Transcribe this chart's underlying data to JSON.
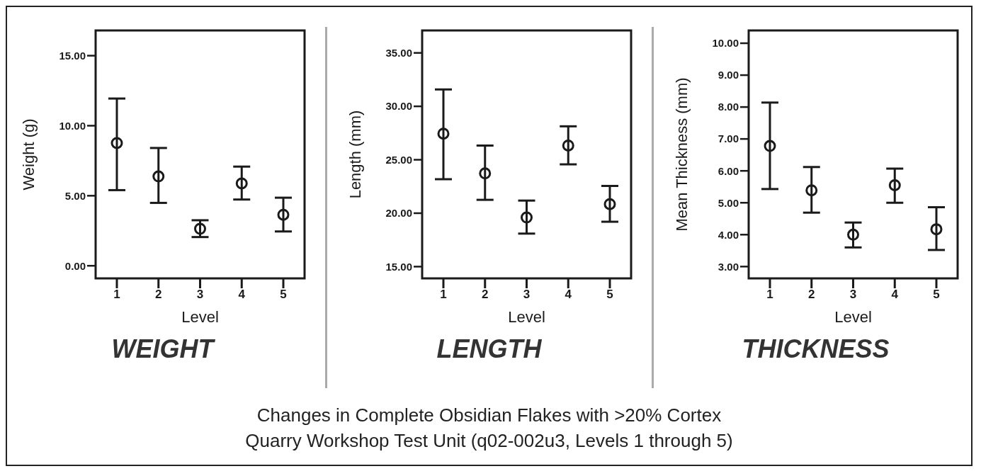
{
  "chart_data": [
    {
      "type": "scatter",
      "title": "WEIGHT",
      "xlabel": "Level",
      "ylabel": "Weight (g)",
      "categories": [
        "1",
        "2",
        "3",
        "4",
        "5"
      ],
      "marker": "circle",
      "legend": false,
      "grid": false,
      "ylim": [
        -0.9,
        16.8
      ],
      "yticks": [
        {
          "value": 0,
          "label": "0.00"
        },
        {
          "value": 5,
          "label": "5.00"
        },
        {
          "value": 10,
          "label": "10.00"
        },
        {
          "value": 15,
          "label": "15.00"
        }
      ],
      "series": [
        {
          "color": "#1a1a1a",
          "values": [
            8.76,
            6.38,
            2.64,
            5.88,
            3.64
          ],
          "errors": [
            [
              5.4,
              11.94
            ],
            [
              4.49,
              8.41
            ],
            [
              2.05,
              3.25
            ],
            [
              4.73,
              7.08
            ],
            [
              2.45,
              4.86
            ]
          ]
        }
      ]
    },
    {
      "type": "scatter",
      "title": "LENGTH",
      "xlabel": "Level",
      "ylabel": "Length (mm)",
      "categories": [
        "1",
        "2",
        "3",
        "4",
        "5"
      ],
      "marker": "circle",
      "legend": false,
      "grid": false,
      "ylim": [
        13.9,
        37.1
      ],
      "yticks": [
        {
          "value": 15,
          "label": "15.00"
        },
        {
          "value": 20,
          "label": "20.00"
        },
        {
          "value": 25,
          "label": "25.00"
        },
        {
          "value": 30,
          "label": "30.00"
        },
        {
          "value": 35,
          "label": "35.00"
        }
      ],
      "series": [
        {
          "color": "#1a1a1a",
          "values": [
            27.44,
            23.72,
            19.6,
            26.33,
            20.85
          ],
          "errors": [
            [
              23.18,
              31.58
            ],
            [
              21.25,
              26.33
            ],
            [
              18.09,
              21.18
            ],
            [
              24.57,
              28.13
            ],
            [
              19.2,
              22.55
            ]
          ]
        }
      ]
    },
    {
      "type": "scatter",
      "title": "THICKNESS",
      "xlabel": "Level",
      "ylabel": "Mean Thickness (mm)",
      "categories": [
        "1",
        "2",
        "3",
        "4",
        "5"
      ],
      "marker": "circle",
      "legend": false,
      "grid": false,
      "ylim": [
        2.63,
        10.4
      ],
      "yticks": [
        {
          "value": 3,
          "label": "3.00"
        },
        {
          "value": 4,
          "label": "4.00"
        },
        {
          "value": 5,
          "label": "5.00"
        },
        {
          "value": 6,
          "label": "6.00"
        },
        {
          "value": 7,
          "label": "7.00"
        },
        {
          "value": 8,
          "label": "8.00"
        },
        {
          "value": 9,
          "label": "9.00"
        },
        {
          "value": 10,
          "label": "10.00"
        }
      ],
      "series": [
        {
          "color": "#1a1a1a",
          "values": [
            6.78,
            5.39,
            4.0,
            5.55,
            4.17
          ],
          "errors": [
            [
              5.43,
              8.14
            ],
            [
              4.69,
              6.12
            ],
            [
              3.6,
              4.38
            ],
            [
              5.0,
              6.07
            ],
            [
              3.52,
              4.86
            ]
          ]
        }
      ],
      "annotations": [
        "Changes in Complete Obsidian Flakes with >20% Cortex",
        "Quarry Workshop Test Unit (q02-002u3, Levels 1 through 5)"
      ]
    }
  ]
}
